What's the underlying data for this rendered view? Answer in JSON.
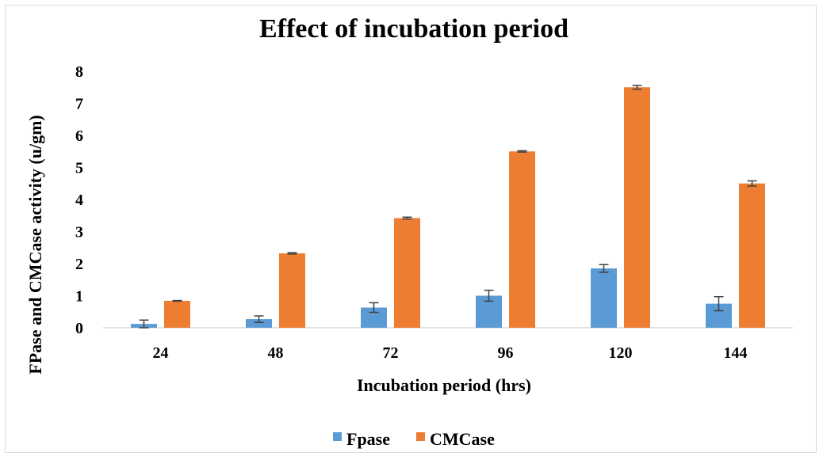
{
  "chart_data": {
    "type": "bar",
    "title": "Effect of incubation period",
    "xlabel": "Incubation period (hrs)",
    "ylabel": "FPase and CMCase activity (u/gm)",
    "categories": [
      "24",
      "48",
      "72",
      "96",
      "120",
      "144"
    ],
    "ylim": [
      0,
      8
    ],
    "yticks": [
      0,
      1,
      2,
      3,
      4,
      5,
      6,
      7,
      8
    ],
    "grid": false,
    "legend_position": "bottom",
    "series": [
      {
        "name": "Fpase",
        "color": "#5B9BD5",
        "values": [
          0.12,
          0.27,
          0.63,
          1.0,
          1.85,
          0.75
        ],
        "errors": [
          0.12,
          0.1,
          0.15,
          0.17,
          0.12,
          0.22
        ]
      },
      {
        "name": "CMCase",
        "color": "#ED7D31",
        "values": [
          0.84,
          2.32,
          3.42,
          5.5,
          7.5,
          4.5
        ],
        "errors": [
          0.01,
          0.02,
          0.03,
          0.02,
          0.06,
          0.08
        ]
      }
    ]
  }
}
